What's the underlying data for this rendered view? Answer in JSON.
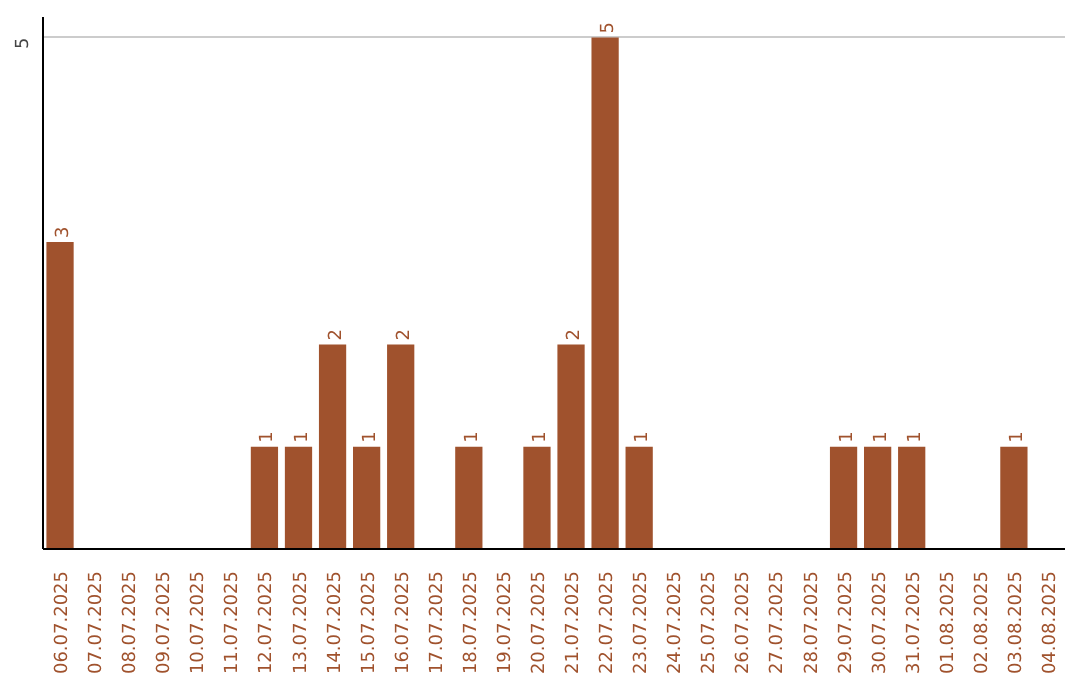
{
  "chart_data": {
    "type": "bar",
    "categories": [
      "06.07.2025",
      "07.07.2025",
      "08.07.2025",
      "09.07.2025",
      "10.07.2025",
      "11.07.2025",
      "12.07.2025",
      "13.07.2025",
      "14.07.2025",
      "15.07.2025",
      "16.07.2025",
      "17.07.2025",
      "18.07.2025",
      "19.07.2025",
      "20.07.2025",
      "21.07.2025",
      "22.07.2025",
      "23.07.2025",
      "24.07.2025",
      "25.07.2025",
      "26.07.2025",
      "27.07.2025",
      "28.07.2025",
      "29.07.2025",
      "30.07.2025",
      "31.07.2025",
      "01.08.2025",
      "02.08.2025",
      "03.08.2025",
      "04.08.2025"
    ],
    "values": [
      3,
      0,
      0,
      0,
      0,
      0,
      1,
      1,
      2,
      1,
      2,
      0,
      1,
      0,
      1,
      2,
      5,
      1,
      0,
      0,
      0,
      0,
      0,
      1,
      1,
      1,
      0,
      0,
      1,
      0
    ],
    "value_labels": [
      "3",
      null,
      null,
      null,
      null,
      null,
      "1",
      "1",
      "2",
      "1",
      "2",
      null,
      "1",
      null,
      "1",
      "2",
      "5",
      "1",
      null,
      null,
      null,
      null,
      null,
      "1",
      "1",
      "1",
      null,
      null,
      "1",
      null
    ],
    "color": "#a0522d",
    "ylim": [
      0,
      5.2
    ],
    "yticks": [
      5
    ],
    "grid": "y"
  }
}
